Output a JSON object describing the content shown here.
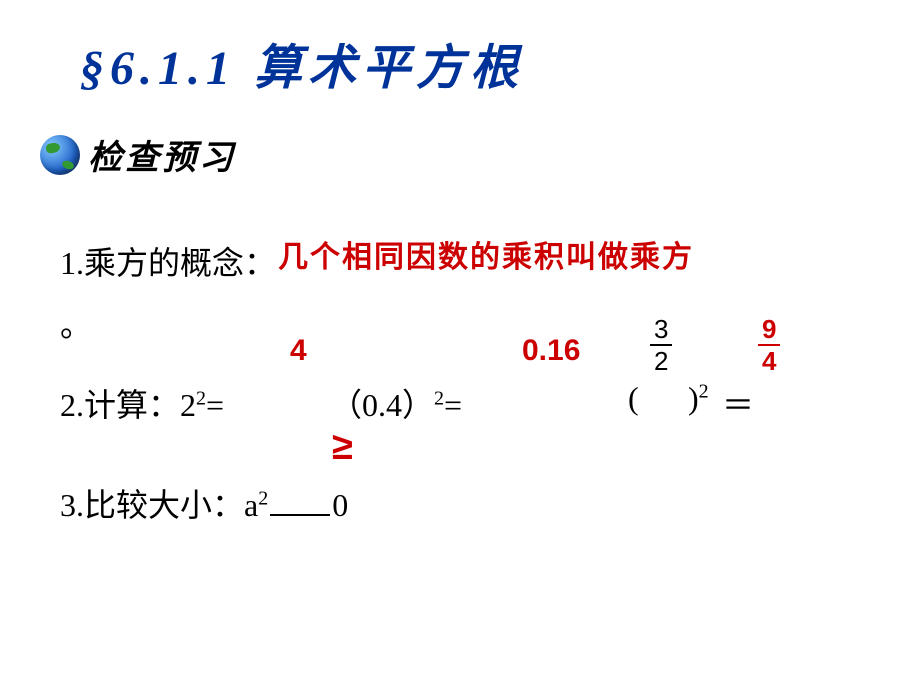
{
  "title": "§6.1.1 算术平方根",
  "subtitle": "检查预习",
  "q1": {
    "label": "1.乘方的概念：",
    "period": "。",
    "answer": "几个相同因数的乘积叫做乘方"
  },
  "q2": {
    "prefix": "2.计算：",
    "expr1_base": "2",
    "expr1_exp": "2",
    "expr1_eq": "=",
    "ans1": "4",
    "expr2_open": "（",
    "expr2_val": "0.4",
    "expr2_close": "）",
    "expr2_exp": "2",
    "expr2_eq": "=",
    "ans2": "0.16",
    "frac1_num": "3",
    "frac1_den": "2",
    "paren_open": "(",
    "paren_close": ")",
    "expr3_exp": "2",
    "expr3_eq": "＝",
    "frac2_num": "9",
    "frac2_den": "4"
  },
  "q3": {
    "prefix": "3.比较大小：",
    "base": "a",
    "exp": "2",
    "zero": "0",
    "answer": "≥"
  },
  "colors": {
    "title": "#003399",
    "answer": "#cc0000",
    "text": "#000000",
    "background": "#ffffff"
  }
}
